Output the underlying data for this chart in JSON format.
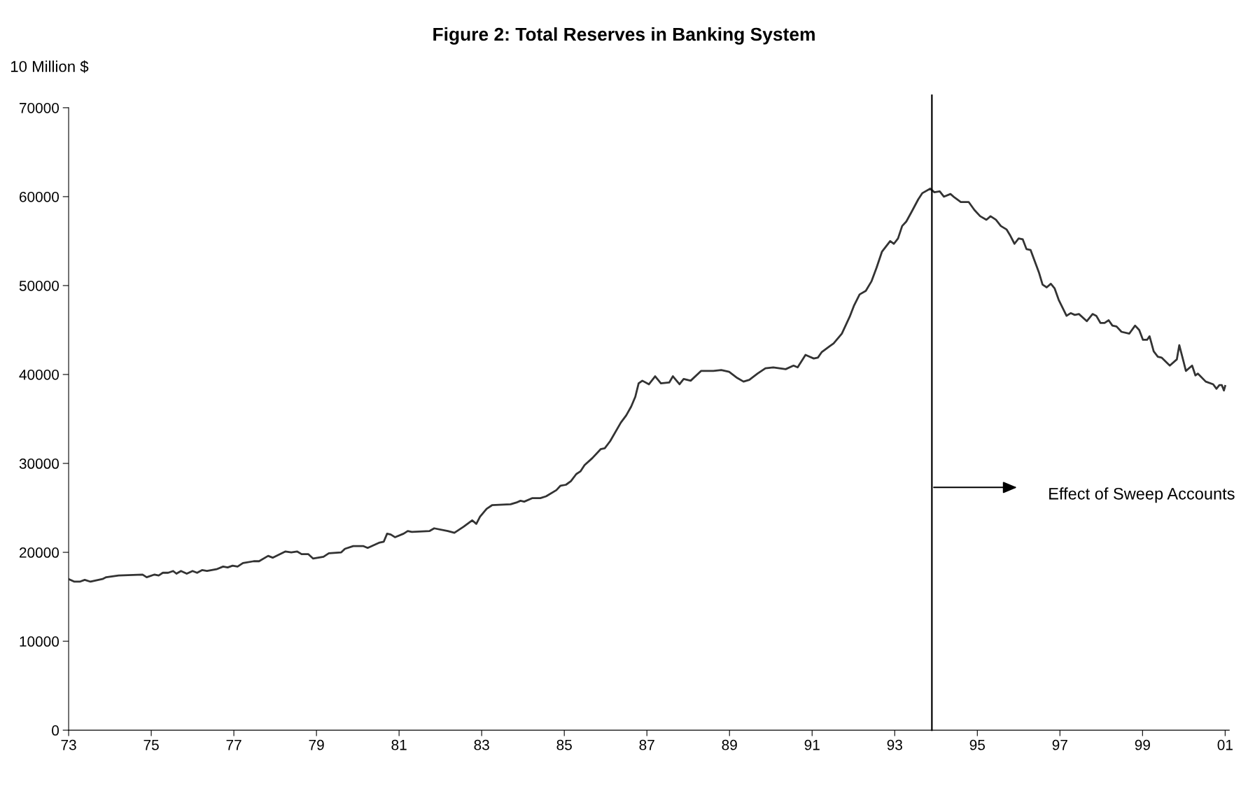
{
  "chart_data": {
    "type": "line",
    "title": "Figure 2: Total Reserves in Banking System",
    "ylabel": "10 Million $",
    "series": [
      {
        "color": "#333333",
        "x": [
          1973.0,
          1973.14,
          1973.27,
          1973.39,
          1973.53,
          1973.82,
          1973.91,
          1974.21,
          1974.79,
          1974.89,
          1975.08,
          1975.18,
          1975.28,
          1975.41,
          1975.53,
          1975.61,
          1975.72,
          1975.86,
          1976.0,
          1976.11,
          1976.23,
          1976.35,
          1976.58,
          1976.74,
          1976.85,
          1976.97,
          1977.09,
          1977.22,
          1977.48,
          1977.61,
          1977.83,
          1977.94,
          1978.25,
          1978.39,
          1978.53,
          1978.64,
          1978.8,
          1978.92,
          1979.17,
          1979.3,
          1979.6,
          1979.69,
          1979.89,
          1980.14,
          1980.24,
          1980.53,
          1980.63,
          1980.71,
          1980.8,
          1980.9,
          1981.11,
          1981.21,
          1981.31,
          1981.74,
          1981.85,
          1982.18,
          1982.34,
          1982.57,
          1982.77,
          1982.87,
          1982.96,
          1983.12,
          1983.25,
          1983.7,
          1983.84,
          1983.94,
          1984.03,
          1984.23,
          1984.42,
          1984.56,
          1984.81,
          1984.91,
          1985.04,
          1985.16,
          1985.29,
          1985.39,
          1985.49,
          1985.68,
          1985.88,
          1985.98,
          1986.11,
          1986.37,
          1986.5,
          1986.62,
          1986.72,
          1986.8,
          1986.89,
          1987.05,
          1987.2,
          1987.34,
          1987.54,
          1987.63,
          1987.79,
          1987.89,
          1988.06,
          1988.31,
          1988.61,
          1988.8,
          1988.99,
          1989.19,
          1989.34,
          1989.48,
          1989.68,
          1989.87,
          1990.06,
          1990.36,
          1990.55,
          1990.65,
          1990.84,
          1991.04,
          1991.14,
          1991.23,
          1991.43,
          1991.52,
          1991.72,
          1991.91,
          1992.01,
          1992.15,
          1992.3,
          1992.44,
          1992.56,
          1992.69,
          1992.89,
          1992.98,
          1993.08,
          1993.18,
          1993.28,
          1993.41,
          1993.57,
          1993.67,
          1993.86,
          1993.96,
          1994.09,
          1994.19,
          1994.35,
          1994.45,
          1994.6,
          1994.79,
          1994.93,
          1995.07,
          1995.22,
          1995.32,
          1995.45,
          1995.57,
          1995.71,
          1995.8,
          1995.9,
          1996.0,
          1996.1,
          1996.19,
          1996.29,
          1996.49,
          1996.58,
          1996.68,
          1996.78,
          1996.87,
          1996.97,
          1997.16,
          1997.26,
          1997.36,
          1997.46,
          1997.65,
          1997.79,
          1997.88,
          1997.98,
          1998.08,
          1998.18,
          1998.27,
          1998.37,
          1998.49,
          1998.68,
          1998.82,
          1998.92,
          1999.01,
          1999.11,
          1999.17,
          1999.27,
          1999.37,
          1999.46,
          1999.66,
          1999.83,
          1999.89,
          1999.99,
          2000.05,
          2000.2,
          2000.28,
          2000.34,
          2000.53,
          2000.71,
          2000.79,
          2000.86,
          2000.92,
          2000.97,
          2001.0
        ],
        "values": [
          17000,
          16700,
          16700,
          16900,
          16700,
          17000,
          17200,
          17400,
          17500,
          17200,
          17500,
          17400,
          17700,
          17700,
          17900,
          17600,
          17900,
          17600,
          17900,
          17700,
          18000,
          17900,
          18100,
          18400,
          18300,
          18500,
          18400,
          18800,
          19000,
          19000,
          19600,
          19400,
          20100,
          20000,
          20100,
          19800,
          19800,
          19300,
          19500,
          19900,
          20000,
          20400,
          20700,
          20700,
          20500,
          21100,
          21200,
          22100,
          22000,
          21700,
          22100,
          22400,
          22300,
          22400,
          22700,
          22400,
          22200,
          22900,
          23600,
          23200,
          24000,
          24900,
          25300,
          25400,
          25600,
          25800,
          25700,
          26100,
          26100,
          26300,
          27000,
          27500,
          27600,
          28000,
          28800,
          29100,
          29800,
          30600,
          31600,
          31700,
          32500,
          34600,
          35400,
          36400,
          37500,
          39000,
          39300,
          38900,
          39800,
          39000,
          39100,
          39800,
          38900,
          39500,
          39300,
          40400,
          40400,
          40500,
          40300,
          39600,
          39200,
          39400,
          40100,
          40700,
          40800,
          40600,
          41000,
          40800,
          42200,
          41800,
          41900,
          42500,
          43200,
          43500,
          44600,
          46500,
          47700,
          49000,
          49400,
          50500,
          52000,
          53800,
          55000,
          54700,
          55300,
          56700,
          57200,
          58300,
          59700,
          60400,
          60900,
          60500,
          60600,
          60000,
          60300,
          59900,
          59400,
          59400,
          58500,
          57800,
          57400,
          57800,
          57400,
          56700,
          56300,
          55600,
          54700,
          55300,
          55200,
          54100,
          54000,
          51500,
          50100,
          49800,
          50200,
          49700,
          48400,
          46600,
          46900,
          46700,
          46800,
          46000,
          46800,
          46600,
          45800,
          45800,
          46100,
          45500,
          45400,
          44800,
          44600,
          45500,
          45000,
          43900,
          43900,
          44300,
          42600,
          42000,
          41900,
          41000,
          41700,
          43300,
          41500,
          40400,
          41000,
          39900,
          40100,
          39200,
          38900,
          38400,
          38800,
          38800,
          38200,
          38700
        ]
      }
    ],
    "xlim": [
      1973,
      2001.1
    ],
    "xticks": [
      {
        "value": 1973,
        "label": "73"
      },
      {
        "value": 1975,
        "label": "75"
      },
      {
        "value": 1977,
        "label": "77"
      },
      {
        "value": 1979,
        "label": "79"
      },
      {
        "value": 1981,
        "label": "81"
      },
      {
        "value": 1983,
        "label": "83"
      },
      {
        "value": 1985,
        "label": "85"
      },
      {
        "value": 1987,
        "label": "87"
      },
      {
        "value": 1989,
        "label": "89"
      },
      {
        "value": 1991,
        "label": "91"
      },
      {
        "value": 1993,
        "label": "93"
      },
      {
        "value": 1995,
        "label": "95"
      },
      {
        "value": 1997,
        "label": "97"
      },
      {
        "value": 1999,
        "label": "99"
      },
      {
        "value": 2001,
        "label": "01"
      }
    ],
    "ylim": [
      0,
      70000
    ],
    "yticks": [
      0,
      10000,
      20000,
      30000,
      40000,
      50000,
      60000,
      70000
    ],
    "ref_lines": [
      {
        "axis": "x",
        "value": 1993.9,
        "color": "#000000",
        "line_style": "solid"
      }
    ],
    "annotations": [
      "Effect of Sweep Accounts"
    ],
    "grid": false,
    "marker": "none",
    "line_style": "solid"
  }
}
